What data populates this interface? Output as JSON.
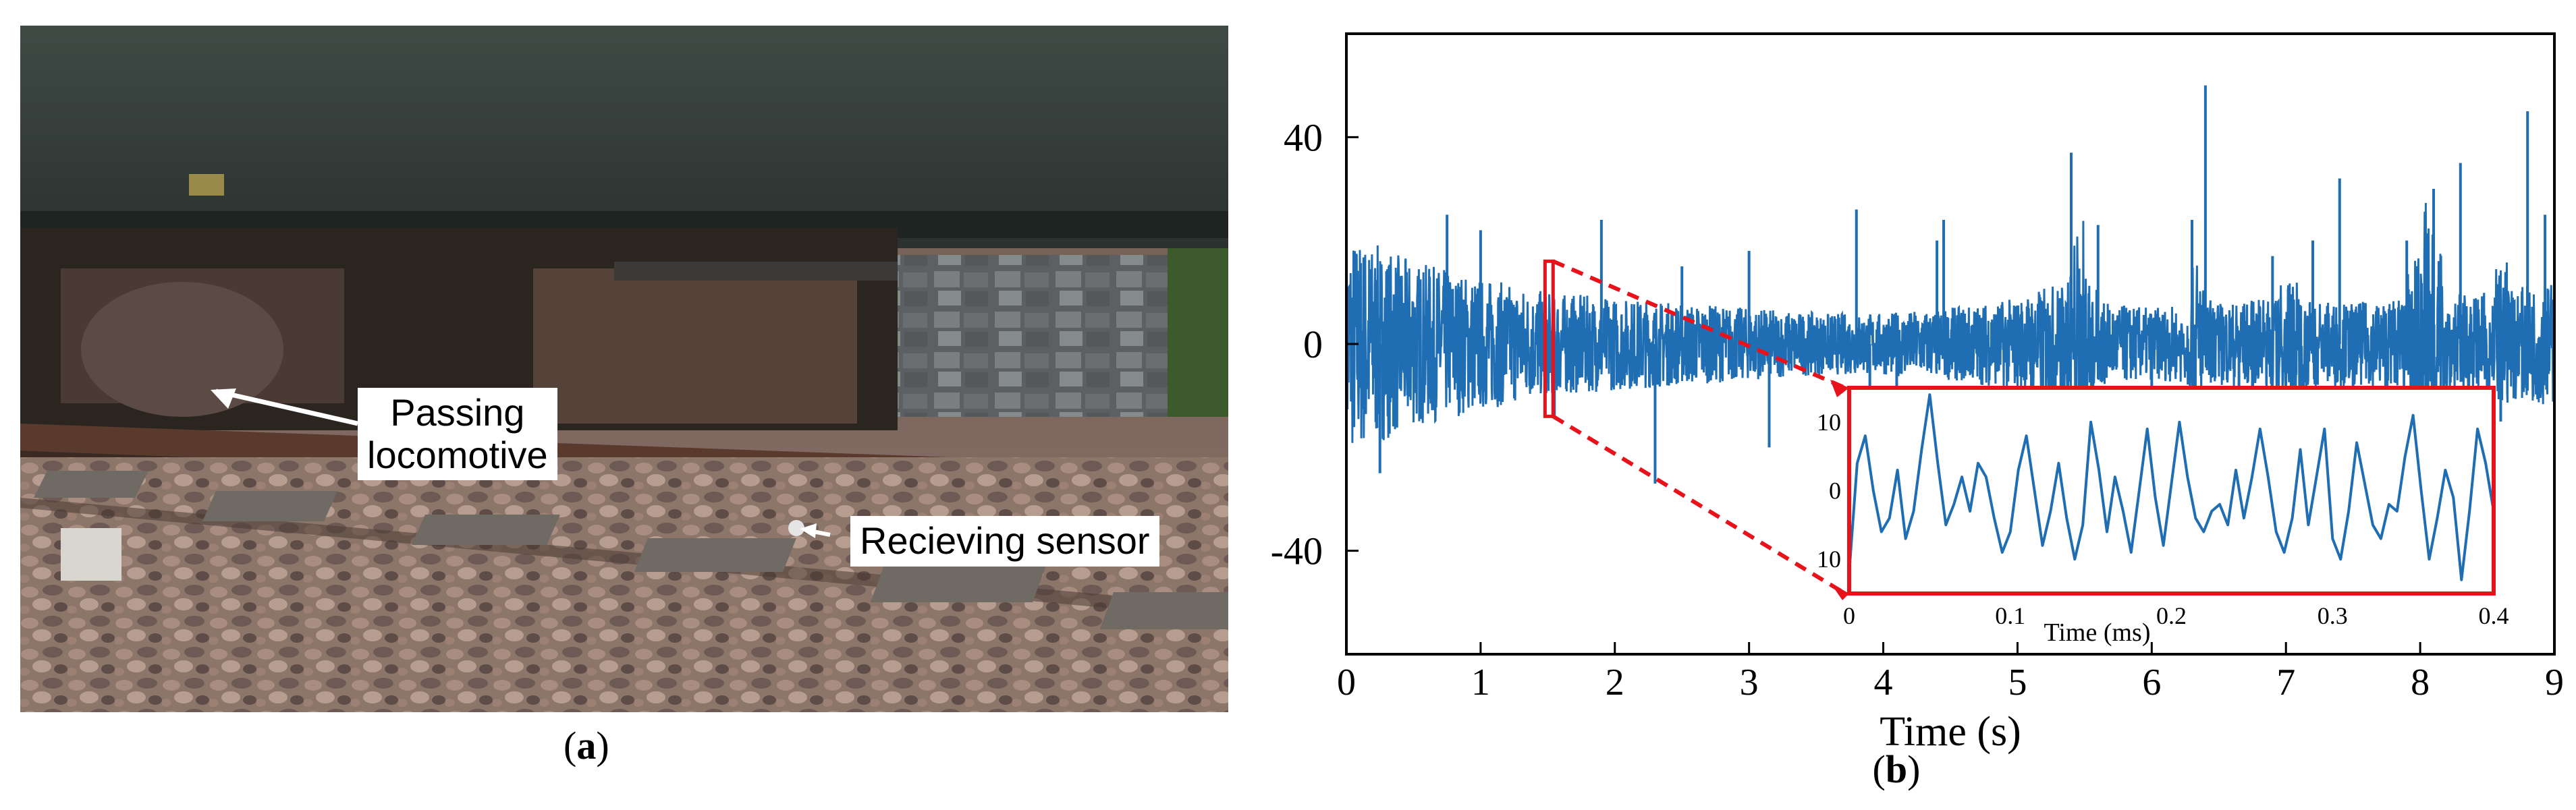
{
  "photo": {
    "callout_locomotive": "Passing\nlocomotive",
    "callout_sensor": "Recieving sensor",
    "label": {
      "open": "(",
      "letter": "a",
      "close": ")"
    }
  },
  "colors": {
    "signal": "#1f6db3",
    "inset_frame": "#e8121b",
    "axis": "#000000"
  },
  "chart_data": [
    {
      "type": "line",
      "xlabel": "Time (s)",
      "ylabel": "",
      "xlim": [
        0,
        9
      ],
      "ylim": [
        -60,
        60
      ],
      "xticks": [
        "0",
        "1",
        "2",
        "3",
        "4",
        "5",
        "6",
        "7",
        "8",
        "9"
      ],
      "yticks": [
        "40",
        "0",
        "-40"
      ],
      "ytick_values": [
        40,
        0,
        -40
      ],
      "panel_label": {
        "open": "(",
        "letter": "b",
        "close": ")"
      },
      "series": [
        {
          "envelope": [
            [
              0.0,
              22
            ],
            [
              0.5,
              16
            ],
            [
              1.0,
              13
            ],
            [
              1.5,
              10
            ],
            [
              2.0,
              9
            ],
            [
              2.5,
              8
            ],
            [
              3.0,
              7
            ],
            [
              3.5,
              6
            ],
            [
              4.0,
              6
            ],
            [
              4.5,
              7
            ],
            [
              5.0,
              9
            ],
            [
              5.3,
              12
            ],
            [
              5.6,
              8
            ],
            [
              6.0,
              7
            ],
            [
              6.5,
              8
            ],
            [
              7.0,
              9
            ],
            [
              7.5,
              8
            ],
            [
              8.0,
              9
            ],
            [
              8.5,
              10
            ],
            [
              9.0,
              12
            ]
          ],
          "spikes": [
            [
              0.25,
              -25
            ],
            [
              0.75,
              25
            ],
            [
              1.0,
              22
            ],
            [
              1.55,
              -14
            ],
            [
              1.9,
              24
            ],
            [
              2.3,
              -27
            ],
            [
              2.5,
              15
            ],
            [
              3.0,
              18
            ],
            [
              3.15,
              -20
            ],
            [
              3.8,
              26
            ],
            [
              3.9,
              -16
            ],
            [
              4.1,
              -20
            ],
            [
              4.4,
              20
            ],
            [
              4.45,
              24
            ],
            [
              5.4,
              37
            ],
            [
              5.6,
              23
            ],
            [
              6.0,
              -20
            ],
            [
              6.3,
              24
            ],
            [
              6.4,
              50
            ],
            [
              6.65,
              -10
            ],
            [
              6.9,
              17
            ],
            [
              7.2,
              20
            ],
            [
              7.4,
              32
            ],
            [
              7.5,
              -20
            ],
            [
              7.9,
              20
            ],
            [
              8.1,
              30
            ],
            [
              8.3,
              35
            ],
            [
              8.6,
              -15
            ],
            [
              8.8,
              45
            ],
            [
              8.93,
              25
            ]
          ],
          "bursts": [
            [
              5.3,
              5.65,
              32
            ],
            [
              6.2,
              6.5,
              22
            ],
            [
              6.8,
              7.3,
              19
            ],
            [
              7.8,
              8.3,
              38
            ],
            [
              8.45,
              8.75,
              25
            ]
          ]
        }
      ],
      "highlight": {
        "x": [
          1.48,
          1.54
        ],
        "y": [
          -14,
          16
        ]
      }
    },
    {
      "type": "line",
      "xlabel": "Time (ms)",
      "ylabel": "",
      "xlim": [
        0,
        0.4
      ],
      "ylim": [
        -15,
        15
      ],
      "xticks": [
        "0",
        "0.1",
        "0.2",
        "0.3",
        "0.4"
      ],
      "yticks": [
        "10",
        "0",
        "10"
      ],
      "ytick_values": [
        10,
        0,
        -10
      ],
      "series": [
        {
          "x": [
            0,
            0.005,
            0.01,
            0.015,
            0.02,
            0.025,
            0.03,
            0.035,
            0.04,
            0.045,
            0.05,
            0.055,
            0.06,
            0.065,
            0.07,
            0.075,
            0.08,
            0.085,
            0.09,
            0.095,
            0.1,
            0.105,
            0.11,
            0.115,
            0.12,
            0.125,
            0.13,
            0.135,
            0.14,
            0.145,
            0.15,
            0.155,
            0.16,
            0.165,
            0.17,
            0.175,
            0.18,
            0.185,
            0.19,
            0.195,
            0.2,
            0.205,
            0.21,
            0.215,
            0.22,
            0.225,
            0.23,
            0.235,
            0.24,
            0.245,
            0.25,
            0.255,
            0.26,
            0.265,
            0.27,
            0.275,
            0.28,
            0.285,
            0.29,
            0.295,
            0.3,
            0.305,
            0.31,
            0.315,
            0.32,
            0.325,
            0.33,
            0.335,
            0.34,
            0.345,
            0.35,
            0.355,
            0.36,
            0.365,
            0.37,
            0.375,
            0.38,
            0.385,
            0.39,
            0.395,
            0.4
          ],
          "y": [
            -12,
            4,
            8,
            0,
            -6,
            -4,
            3,
            -7,
            -3,
            6,
            14,
            4,
            -5,
            -2,
            2,
            -3,
            4,
            2,
            -4,
            -9,
            -6,
            3,
            8,
            0,
            -8,
            -3,
            4,
            -4,
            -10,
            -5,
            10,
            3,
            -6,
            2,
            -3,
            -9,
            0,
            9,
            -1,
            -8,
            1,
            10,
            2,
            -4,
            -6,
            -3,
            -2,
            -5,
            3,
            -4,
            2,
            9,
            2,
            -6,
            -9,
            -4,
            6,
            -5,
            2,
            9,
            -7,
            -10,
            -3,
            7,
            1,
            -5,
            -7,
            -2,
            -3,
            5,
            11,
            0,
            -10,
            -4,
            3,
            -1,
            -13,
            -3,
            9,
            4,
            -3
          ]
        }
      ]
    }
  ]
}
